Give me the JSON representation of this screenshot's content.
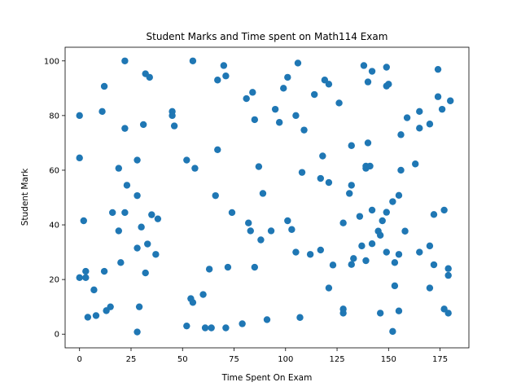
{
  "chart_data": {
    "type": "scatter",
    "title": "Student Marks and Time spent on Math114 Exam",
    "xlabel": "Time Spent On Exam",
    "ylabel": "Student Mark",
    "xlim": [
      -7,
      189
    ],
    "ylim": [
      -5,
      105
    ],
    "xticks": [
      "0",
      "25",
      "50",
      "75",
      "100",
      "125",
      "150",
      "175"
    ],
    "yticks": [
      "0",
      "20",
      "40",
      "60",
      "80",
      "100"
    ],
    "grid": false,
    "legend": "none",
    "marker_color": "#1f77b4",
    "series": [
      {
        "points": [
          [
            0,
            80
          ],
          [
            0,
            64.5
          ],
          [
            0,
            20.7
          ],
          [
            2,
            41.5
          ],
          [
            3,
            23
          ],
          [
            3,
            20.7
          ],
          [
            4,
            6.2
          ],
          [
            7,
            16.2
          ],
          [
            8,
            6.8
          ],
          [
            11,
            81.5
          ],
          [
            12,
            90.7
          ],
          [
            12,
            23
          ],
          [
            13,
            8.6
          ],
          [
            15,
            10
          ],
          [
            16,
            44.5
          ],
          [
            19,
            60.7
          ],
          [
            19,
            37.8
          ],
          [
            20,
            26.2
          ],
          [
            22,
            100
          ],
          [
            22,
            75.3
          ],
          [
            23,
            54.5
          ],
          [
            22,
            44.5
          ],
          [
            28,
            63.7
          ],
          [
            28,
            50.7
          ],
          [
            28,
            31.5
          ],
          [
            28,
            0.8
          ],
          [
            29,
            10
          ],
          [
            30,
            39.2
          ],
          [
            31,
            76.7
          ],
          [
            32,
            95.3
          ],
          [
            32,
            22.4
          ],
          [
            33,
            33
          ],
          [
            34,
            94
          ],
          [
            35,
            43.7
          ],
          [
            37,
            29.2
          ],
          [
            38,
            42.2
          ],
          [
            45,
            81.5
          ],
          [
            45,
            80
          ],
          [
            46,
            76.2
          ],
          [
            52,
            63.7
          ],
          [
            52,
            3
          ],
          [
            54,
            13
          ],
          [
            55,
            11.6
          ],
          [
            55,
            100
          ],
          [
            56,
            60.7
          ],
          [
            60,
            14.5
          ],
          [
            61,
            2.3
          ],
          [
            63,
            23.8
          ],
          [
            64,
            2.3
          ],
          [
            66,
            50.7
          ],
          [
            67,
            93
          ],
          [
            67,
            67.5
          ],
          [
            70,
            98.3
          ],
          [
            71,
            94.5
          ],
          [
            71,
            2.3
          ],
          [
            72,
            24.5
          ],
          [
            74,
            44.5
          ],
          [
            79,
            3.8
          ],
          [
            81,
            86.2
          ],
          [
            82,
            40.7
          ],
          [
            83,
            37.8
          ],
          [
            84,
            88.5
          ],
          [
            85,
            78.5
          ],
          [
            85,
            24.5
          ],
          [
            87,
            61.3
          ],
          [
            88,
            34.5
          ],
          [
            89,
            51.5
          ],
          [
            91,
            5.3
          ],
          [
            93,
            37.8
          ],
          [
            95,
            82.3
          ],
          [
            97,
            77.5
          ],
          [
            99,
            90
          ],
          [
            101,
            94
          ],
          [
            101,
            41.5
          ],
          [
            103,
            38.3
          ],
          [
            105,
            80
          ],
          [
            105,
            30
          ],
          [
            106,
            99.2
          ],
          [
            107,
            6.1
          ],
          [
            108,
            59.2
          ],
          [
            109,
            74.7
          ],
          [
            112,
            29.2
          ],
          [
            114,
            87.7
          ],
          [
            117,
            30.8
          ],
          [
            117,
            57
          ],
          [
            118,
            65.2
          ],
          [
            119,
            93
          ],
          [
            121,
            91.5
          ],
          [
            121,
            55.5
          ],
          [
            121,
            16.9
          ],
          [
            123,
            25.3
          ],
          [
            126,
            84.6
          ],
          [
            128,
            40.7
          ],
          [
            128,
            9.2
          ],
          [
            128,
            7.7
          ],
          [
            131,
            51.5
          ],
          [
            132,
            69
          ],
          [
            132,
            54.5
          ],
          [
            132,
            25.5
          ],
          [
            133,
            27.7
          ],
          [
            136,
            43.1
          ],
          [
            137,
            32.3
          ],
          [
            138,
            98.3
          ],
          [
            139,
            61.5
          ],
          [
            139,
            60.7
          ],
          [
            139,
            26.9
          ],
          [
            140,
            92.3
          ],
          [
            140,
            70
          ],
          [
            141,
            61.5
          ],
          [
            142,
            96.2
          ],
          [
            142,
            45.4
          ],
          [
            142,
            33.1
          ],
          [
            145,
            37.7
          ],
          [
            146,
            36.2
          ],
          [
            146,
            7.7
          ],
          [
            147,
            41.5
          ],
          [
            149,
            97.7
          ],
          [
            149,
            90.8
          ],
          [
            149,
            44.6
          ],
          [
            149,
            30
          ],
          [
            150,
            91.5
          ],
          [
            152,
            48.5
          ],
          [
            152,
            1
          ],
          [
            153,
            26.2
          ],
          [
            153,
            17.7
          ],
          [
            155,
            50.8
          ],
          [
            155,
            29.2
          ],
          [
            155,
            8.5
          ],
          [
            156,
            73
          ],
          [
            156,
            60
          ],
          [
            158,
            37.7
          ],
          [
            159,
            79.2
          ],
          [
            163,
            62.3
          ],
          [
            165,
            81.5
          ],
          [
            165,
            75.4
          ],
          [
            165,
            30
          ],
          [
            170,
            76.9
          ],
          [
            170,
            32.3
          ],
          [
            170,
            16.9
          ],
          [
            172,
            43.8
          ],
          [
            172,
            25.4
          ],
          [
            174,
            96.9
          ],
          [
            174,
            86.9
          ],
          [
            176,
            82.3
          ],
          [
            177,
            45.4
          ],
          [
            177,
            9.2
          ],
          [
            179,
            24
          ],
          [
            179,
            21.5
          ],
          [
            179,
            7.7
          ],
          [
            180,
            85.4
          ]
        ]
      }
    ]
  }
}
